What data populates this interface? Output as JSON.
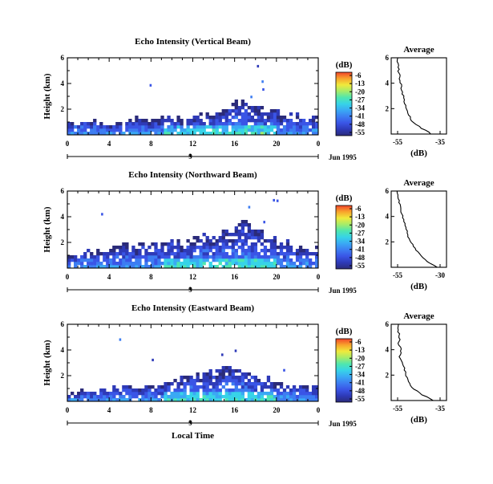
{
  "colors": {
    "scale": [
      "#2b2b7a",
      "#2e3ab8",
      "#3a55e6",
      "#3d7df2",
      "#3aa9f4",
      "#37d3e8",
      "#4ee6b0",
      "#a4ec6a",
      "#f0ea3c",
      "#f8a52c",
      "#f0442a"
    ],
    "axis": "#000000",
    "profile": "#000000"
  },
  "chart_data": [
    {
      "type": "heatmap",
      "name": "vertical",
      "title": "Echo Intensity (Vertical Beam)",
      "ylabel": "Height (km)",
      "xticks": [
        "0",
        "4",
        "8",
        "12",
        "16",
        "20",
        "0"
      ],
      "yticks": [
        "2",
        "4",
        "6"
      ],
      "ylim": [
        0,
        6
      ],
      "date_label": "Jun 1995",
      "date_marker": "9",
      "colorbar_label": "(dB)",
      "colorbar_ticks": [
        "-6",
        "-13",
        "-20",
        "-27",
        "-34",
        "-41",
        "-48",
        "-55"
      ],
      "avg_title": "Average",
      "avg_xlabel": "(dB)",
      "avg_xticks": [
        "-55",
        "-35"
      ],
      "avg_yticks": [
        "2",
        "4",
        "6"
      ],
      "echo_top_km": [
        0.8,
        0.9,
        0.9,
        0.9,
        0.9,
        1.0,
        1.0,
        1.0,
        1.1,
        1.1,
        1.1,
        1.2,
        1.3,
        1.5,
        1.6,
        1.9,
        2.2,
        2.3,
        2.0,
        1.8,
        1.6,
        1.5,
        1.3,
        1.3,
        1.2
      ],
      "profile_db": [
        [
          0,
          -39
        ],
        [
          0.5,
          -44
        ],
        [
          1,
          -48
        ],
        [
          1.5,
          -50
        ],
        [
          2,
          -51
        ],
        [
          2.5,
          -52
        ],
        [
          3,
          -52.5
        ],
        [
          3.5,
          -53
        ],
        [
          4,
          -53.5
        ],
        [
          4.5,
          -54
        ],
        [
          5,
          -54.5
        ],
        [
          5.5,
          -54.8
        ],
        [
          6,
          -55
        ]
      ]
    },
    {
      "type": "heatmap",
      "name": "northward",
      "title": "Echo Intensity (Northward Beam)",
      "ylabel": "Height (km)",
      "xticks": [
        "0",
        "4",
        "8",
        "12",
        "16",
        "20",
        "0"
      ],
      "yticks": [
        "2",
        "4",
        "6"
      ],
      "ylim": [
        0,
        6
      ],
      "date_label": "Jun 1995",
      "date_marker": "9",
      "colorbar_label": "(dB)",
      "colorbar_ticks": [
        "-6",
        "-13",
        "-20",
        "-27",
        "-34",
        "-41",
        "-48",
        "-55"
      ],
      "avg_title": "Average",
      "avg_xlabel": "(dB)",
      "avg_xticks": [
        "-55",
        "-30"
      ],
      "avg_yticks": [
        "2",
        "4",
        "6"
      ],
      "echo_top_km": [
        0.9,
        1.1,
        1.2,
        1.2,
        1.4,
        1.5,
        1.6,
        1.6,
        1.7,
        1.8,
        1.8,
        1.9,
        2.1,
        2.3,
        2.5,
        2.6,
        3.0,
        3.4,
        2.6,
        2.2,
        1.9,
        1.7,
        1.5,
        1.4,
        1.3
      ],
      "profile_db": [
        [
          0,
          -32
        ],
        [
          0.5,
          -38
        ],
        [
          1,
          -42
        ],
        [
          1.5,
          -45
        ],
        [
          2,
          -47
        ],
        [
          2.5,
          -49
        ],
        [
          3,
          -50
        ],
        [
          3.5,
          -51
        ],
        [
          4,
          -52
        ],
        [
          4.5,
          -53
        ],
        [
          5,
          -53.8
        ],
        [
          5.5,
          -54.5
        ],
        [
          6,
          -55
        ]
      ]
    },
    {
      "type": "heatmap",
      "name": "eastward",
      "title": "Echo Intensity (Eastward Beam)",
      "ylabel": "Height (km)",
      "xlabel": "Local Time",
      "xticks": [
        "0",
        "4",
        "8",
        "12",
        "16",
        "20",
        "0"
      ],
      "yticks": [
        "2",
        "4",
        "6"
      ],
      "ylim": [
        0,
        6
      ],
      "date_label": "Jun 1995",
      "date_marker": "9",
      "colorbar_label": "(dB)",
      "colorbar_ticks": [
        "-6",
        "-13",
        "-20",
        "-27",
        "-34",
        "-41",
        "-48",
        "-55"
      ],
      "avg_title": "Average",
      "avg_xlabel": "(dB)",
      "avg_xticks": [
        "-55",
        "-35"
      ],
      "avg_yticks": [
        "2",
        "4",
        "6"
      ],
      "echo_top_km": [
        0.5,
        0.6,
        0.6,
        0.7,
        0.8,
        0.8,
        0.9,
        1.0,
        1.1,
        1.3,
        1.5,
        1.7,
        1.9,
        2.0,
        2.3,
        2.6,
        2.4,
        2.2,
        1.9,
        1.6,
        1.3,
        1.1,
        1.0,
        0.9,
        0.8
      ],
      "profile_db": [
        [
          0,
          -38
        ],
        [
          0.5,
          -44
        ],
        [
          1,
          -48
        ],
        [
          1.5,
          -50
        ],
        [
          2,
          -51
        ],
        [
          2.5,
          -52
        ],
        [
          3,
          -53
        ],
        [
          3.5,
          -54
        ],
        [
          4,
          -53.5
        ],
        [
          4.5,
          -54.5
        ],
        [
          5,
          -54
        ],
        [
          5.5,
          -54.8
        ],
        [
          6,
          -55
        ]
      ]
    }
  ]
}
